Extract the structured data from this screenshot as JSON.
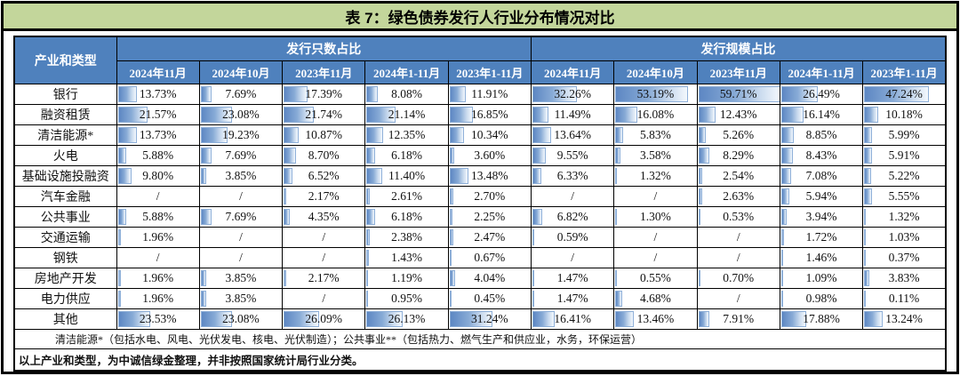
{
  "title": "表 7：绿色债券发行人行业分布情况对比",
  "table": {
    "corner_header": "产业和类型",
    "group_headers": [
      "发行只数占比",
      "发行规模占比"
    ],
    "period_headers": [
      "2024年11月",
      "2024年10月",
      "2023年11月",
      "2024年1-11月",
      "2023年1-11月"
    ],
    "missing_marker": "/",
    "bar_scale_max": 59.71,
    "rows": [
      {
        "label": "银行",
        "count_share": [
          "13.73%",
          "7.69%",
          "17.39%",
          "8.08%",
          "11.91%"
        ],
        "scale_share": [
          "32.26%",
          "53.19%",
          "59.71%",
          "26.49%",
          "47.24%"
        ]
      },
      {
        "label": "融资租赁",
        "count_share": [
          "21.57%",
          "23.08%",
          "21.74%",
          "21.14%",
          "16.85%"
        ],
        "scale_share": [
          "11.49%",
          "16.08%",
          "12.43%",
          "16.14%",
          "10.18%"
        ]
      },
      {
        "label": "清洁能源*",
        "count_share": [
          "13.73%",
          "19.23%",
          "10.87%",
          "12.35%",
          "10.34%"
        ],
        "scale_share": [
          "13.64%",
          "5.83%",
          "5.26%",
          "8.85%",
          "5.99%"
        ]
      },
      {
        "label": "火电",
        "count_share": [
          "5.88%",
          "7.69%",
          "8.70%",
          "6.18%",
          "3.60%"
        ],
        "scale_share": [
          "9.55%",
          "3.58%",
          "8.29%",
          "8.43%",
          "5.91%"
        ]
      },
      {
        "label": "基础设施投融资",
        "count_share": [
          "9.80%",
          "3.85%",
          "6.52%",
          "11.40%",
          "13.48%"
        ],
        "scale_share": [
          "6.33%",
          "1.32%",
          "2.54%",
          "7.08%",
          "5.22%"
        ]
      },
      {
        "label": "汽车金融",
        "count_share": [
          "/",
          "/",
          "2.17%",
          "2.61%",
          "2.70%"
        ],
        "scale_share": [
          "/",
          "/",
          "2.63%",
          "5.94%",
          "5.55%"
        ]
      },
      {
        "label": "公共事业",
        "count_share": [
          "5.88%",
          "7.69%",
          "4.35%",
          "6.18%",
          "2.25%"
        ],
        "scale_share": [
          "6.82%",
          "1.30%",
          "0.53%",
          "3.94%",
          "1.32%"
        ]
      },
      {
        "label": "交通运输",
        "count_share": [
          "1.96%",
          "/",
          "/",
          "2.38%",
          "2.47%"
        ],
        "scale_share": [
          "0.59%",
          "/",
          "/",
          "1.72%",
          "1.03%"
        ]
      },
      {
        "label": "钢铁",
        "count_share": [
          "/",
          "/",
          "/",
          "1.43%",
          "0.67%"
        ],
        "scale_share": [
          "/",
          "/",
          "/",
          "1.46%",
          "0.37%"
        ]
      },
      {
        "label": "房地产开发",
        "count_share": [
          "1.96%",
          "3.85%",
          "2.17%",
          "1.19%",
          "4.04%"
        ],
        "scale_share": [
          "1.47%",
          "0.55%",
          "0.70%",
          "1.09%",
          "3.83%"
        ]
      },
      {
        "label": "电力供应",
        "count_share": [
          "1.96%",
          "3.85%",
          "/",
          "0.95%",
          "0.45%"
        ],
        "scale_share": [
          "1.47%",
          "4.68%",
          "/",
          "0.98%",
          "0.11%"
        ]
      },
      {
        "label": "其他",
        "count_share": [
          "23.53%",
          "23.08%",
          "26.09%",
          "26.13%",
          "31.24%"
        ],
        "scale_share": [
          "16.41%",
          "13.46%",
          "7.91%",
          "17.88%",
          "13.24%"
        ]
      }
    ],
    "footnote": "清洁能源*（包括水电、风电、光伏发电、核电、光伏制造）；公共事业**（包括热力、燃气生产和供应业，水务，环保运营）"
  },
  "bottom_note": "以上产业和类型，为中诚信绿金整理，并非按照国家统计局行业分类。",
  "colors": {
    "title_bar_bg": "#c3d69b",
    "header_bg": "#4f81bd",
    "header_text": "#ffffff",
    "bar_gradient_start": "#5d87c3",
    "bar_gradient_end": "#f3f8fd",
    "bar_border": "#8fb0d9",
    "grid": "#000000"
  }
}
